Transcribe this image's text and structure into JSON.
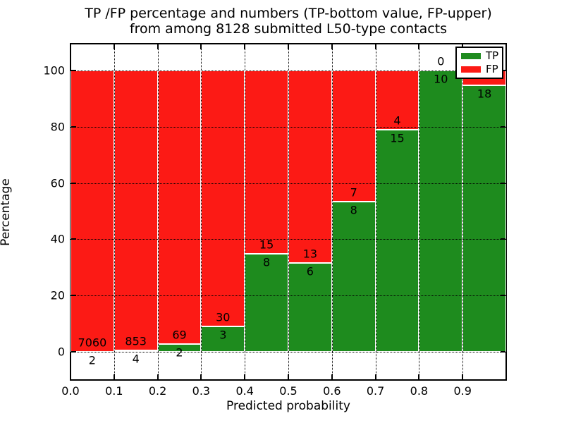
{
  "title": {
    "line1": "TP /FP percentage and numbers (TP-bottom value, FP-upper)",
    "line2": "from among 8128 submitted L50-type contacts"
  },
  "axes": {
    "xlabel": "Predicted probability",
    "ylabel": "Percentage",
    "x_tick_labels": [
      "0.0",
      "0.1",
      "0.2",
      "0.3",
      "0.4",
      "0.5",
      "0.6",
      "0.7",
      "0.8",
      "0.9"
    ],
    "y_tick_labels": [
      "0",
      "20",
      "40",
      "60",
      "80",
      "100"
    ],
    "y_tick_values": [
      0,
      20,
      40,
      60,
      80,
      100
    ],
    "grid": "dotted, both axes, drawn over bars"
  },
  "legend": {
    "position": "upper right",
    "items": [
      {
        "label": "TP",
        "color": "#1e8b1e"
      },
      {
        "label": "FP",
        "color": "#fc1a15"
      }
    ]
  },
  "colors": {
    "tp_green": "#1e8b1e",
    "fp_red": "#fc1a15",
    "bar_edge": "#ffffff",
    "grid_and_text": "#000000",
    "background": "#ffffff"
  },
  "chart_data": {
    "type": "bar",
    "subtype": "stacked-percentage-histogram",
    "title": "TP /FP percentage and numbers (TP-bottom value, FP-upper) from among 8128 submitted L50-type contacts",
    "xlabel": "Predicted probability",
    "ylabel": "Percentage",
    "x_bin_width": 0.1,
    "x_range": [
      0.0,
      1.0
    ],
    "ylim_percent": [
      0,
      100
    ],
    "total_submitted": 8128,
    "series": [
      {
        "name": "TP",
        "color": "#1e8b1e",
        "stack_position": "bottom"
      },
      {
        "name": "FP",
        "color": "#fc1a15",
        "stack_position": "top"
      }
    ],
    "bins": [
      {
        "x_start": 0.0,
        "x_end": 0.1,
        "tp_label": "2",
        "fp_label": "7060",
        "tp_percent": 0.03
      },
      {
        "x_start": 0.1,
        "x_end": 0.2,
        "tp_label": "4",
        "fp_label": "853",
        "tp_percent": 0.47
      },
      {
        "x_start": 0.2,
        "x_end": 0.3,
        "tp_label": "2",
        "fp_label": "69",
        "tp_percent": 2.82
      },
      {
        "x_start": 0.3,
        "x_end": 0.4,
        "tp_label": "3",
        "fp_label": "30",
        "tp_percent": 9.09
      },
      {
        "x_start": 0.4,
        "x_end": 0.5,
        "tp_label": "8",
        "fp_label": "15",
        "tp_percent": 34.78
      },
      {
        "x_start": 0.5,
        "x_end": 0.6,
        "tp_label": "6",
        "fp_label": "13",
        "tp_percent": 31.58
      },
      {
        "x_start": 0.6,
        "x_end": 0.7,
        "tp_label": "8",
        "fp_label": "7",
        "tp_percent": 53.33
      },
      {
        "x_start": 0.7,
        "x_end": 0.8,
        "tp_label": "15",
        "fp_label": "4",
        "tp_percent": 78.95
      },
      {
        "x_start": 0.8,
        "x_end": 0.9,
        "tp_label": "10",
        "fp_label": "0",
        "tp_percent": 100.0
      },
      {
        "x_start": 0.9,
        "x_end": 1.0,
        "tp_label": "18",
        "fp_label": "",
        "tp_percent": 94.74,
        "note": "FP count label hidden behind legend box"
      }
    ]
  }
}
